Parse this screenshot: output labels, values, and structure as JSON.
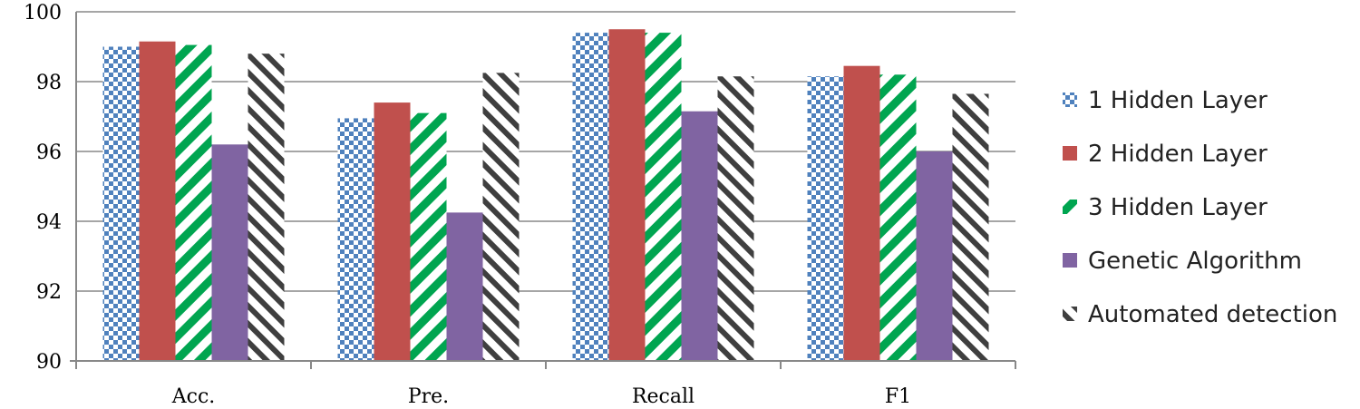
{
  "chart_data": {
    "type": "bar",
    "categories": [
      "Acc.",
      "Pre.",
      "Recall",
      "F1"
    ],
    "series": [
      {
        "name": "1 Hidden Layer",
        "values": [
          99.0,
          96.95,
          99.4,
          98.15
        ]
      },
      {
        "name": "2 Hidden Layer",
        "values": [
          99.15,
          97.4,
          99.5,
          98.45
        ]
      },
      {
        "name": "3 Hidden Layer",
        "values": [
          99.05,
          97.1,
          99.4,
          98.2
        ]
      },
      {
        "name": "Genetic Algorithm",
        "values": [
          96.2,
          94.25,
          97.15,
          96.0
        ]
      },
      {
        "name": "Automated detection",
        "values": [
          98.8,
          98.25,
          98.15,
          97.65
        ]
      }
    ],
    "ylim": [
      90,
      100
    ],
    "yticks": [
      90,
      92,
      94,
      96,
      98,
      100
    ],
    "xlabel": "",
    "ylabel": "",
    "title": "",
    "grid": true,
    "legend_position": "right",
    "colors": {
      "series1": "#4f81bd",
      "series2": "#c0504d",
      "series3": "#00a550",
      "series4": "#8064a2",
      "series5": "#3f3f3f",
      "grid": "#a6a6a6",
      "axis": "#888888"
    }
  }
}
